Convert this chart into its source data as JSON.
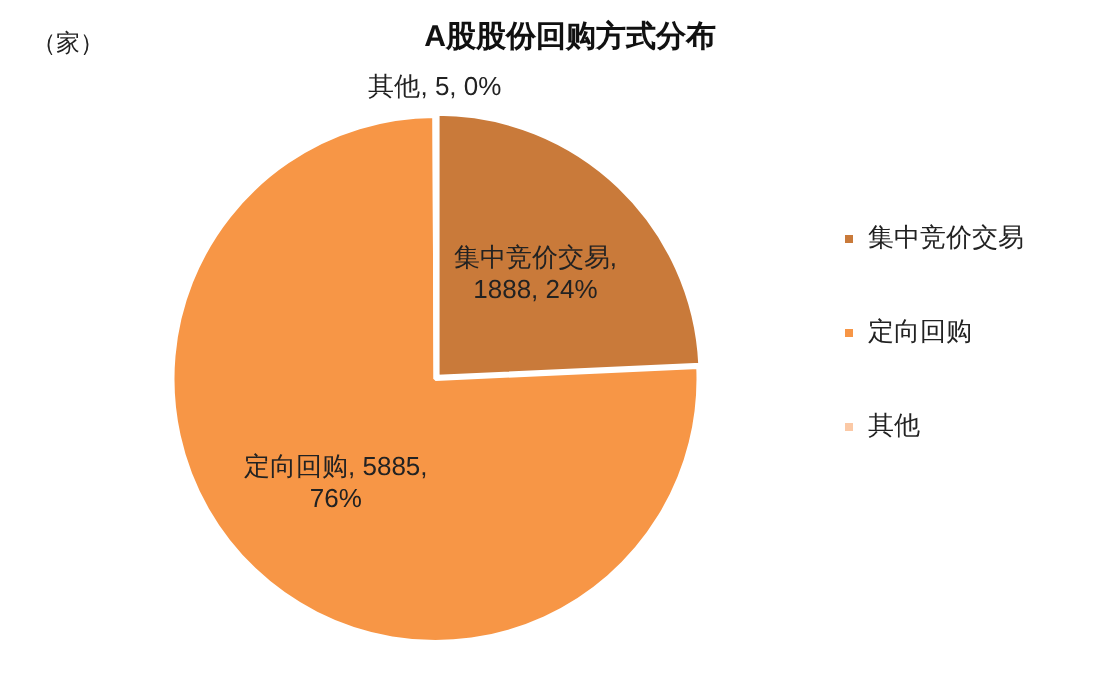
{
  "chart_data": {
    "type": "pie",
    "title": "A股股份回购方式分布",
    "annotations": [
      "（家）"
    ],
    "categories": [
      "集中竞价交易",
      "定向回购",
      "其他"
    ],
    "values": [
      1888,
      5885,
      5
    ],
    "colors": [
      "#c97a3a",
      "#f79646",
      "#fbc9a6"
    ],
    "value_labels": [
      "集中竞价交易, 1888, 24%",
      "定向回购, 5885, 76%",
      "其他, 5, 0%"
    ],
    "legend": "right"
  }
}
